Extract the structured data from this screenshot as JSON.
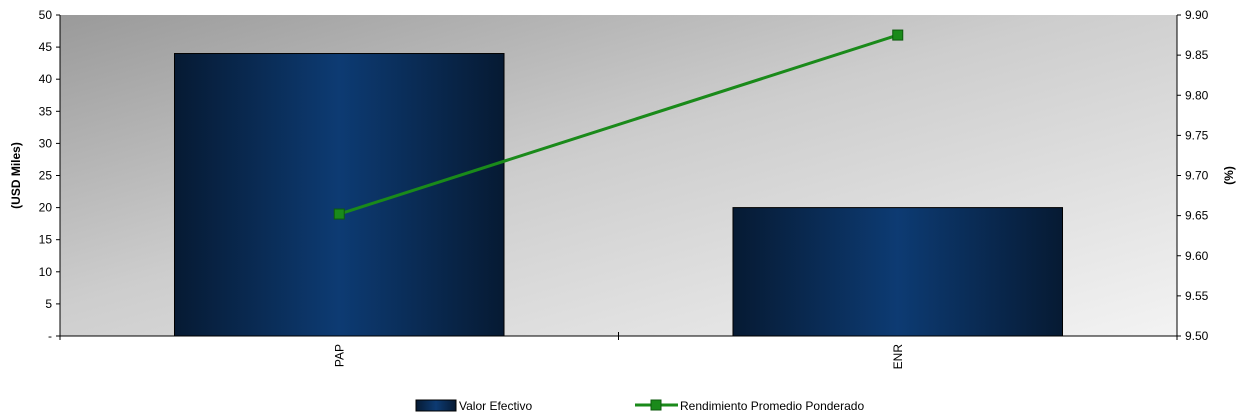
{
  "chart_data": {
    "type": "bar",
    "categories": [
      "PAP",
      "ENR"
    ],
    "series": [
      {
        "name": "Valor Efectivo",
        "type": "bar",
        "axis": "left",
        "values": [
          44,
          20
        ]
      },
      {
        "name": "Rendimiento Promedio Ponderado",
        "type": "line",
        "axis": "right",
        "values": [
          9.652,
          9.875
        ]
      }
    ],
    "ylabel": "(USD Miles)",
    "y2label": "(%)",
    "ylim": [
      0,
      50
    ],
    "y2lim": [
      9.5,
      9.9
    ],
    "yticks": [
      "-",
      "5",
      "10",
      "15",
      "20",
      "25",
      "30",
      "35",
      "40",
      "45",
      "50"
    ],
    "y2ticks": [
      "9.50",
      "9.55",
      "9.60",
      "9.65",
      "9.70",
      "9.75",
      "9.80",
      "9.85",
      "9.90"
    ],
    "grid": false,
    "legend_position": "bottom-center",
    "colors": {
      "bar": "#0b2e59",
      "line": "#1a8a1a"
    }
  }
}
